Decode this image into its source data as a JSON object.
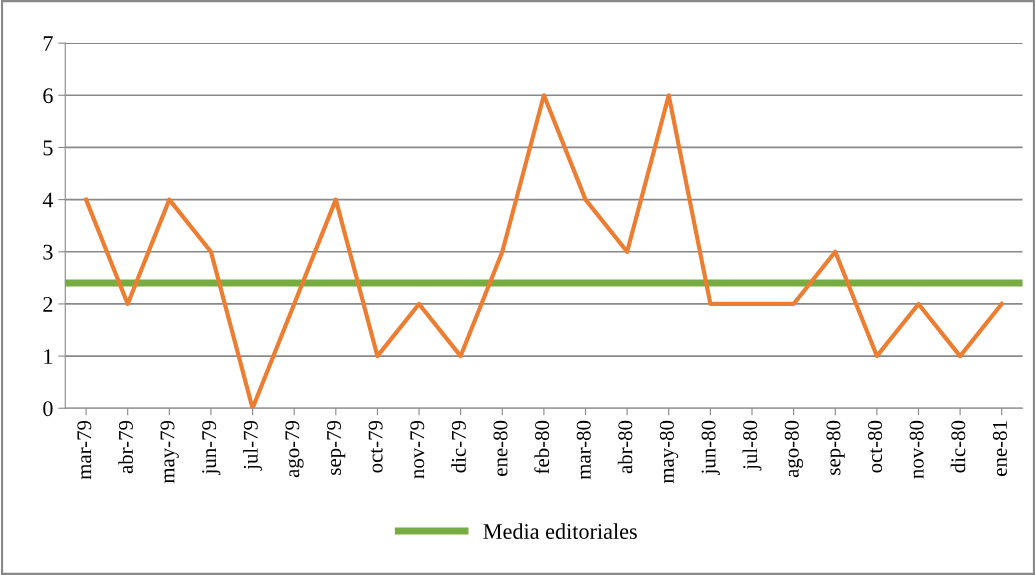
{
  "chart_data": {
    "type": "line",
    "categories": [
      "mar-79",
      "abr-79",
      "may-79",
      "jun-79",
      "jul-79",
      "ago-79",
      "sep-79",
      "oct-79",
      "nov-79",
      "dic-79",
      "ene-80",
      "feb-80",
      "mar-80",
      "abr-80",
      "may-80",
      "jun-80",
      "jul-80",
      "ago-80",
      "sep-80",
      "oct-80",
      "nov-80",
      "dic-80",
      "ene-81"
    ],
    "series": [
      {
        "color": "#ed7d31",
        "values": [
          4,
          2,
          4,
          3,
          0,
          2,
          4,
          1,
          2,
          1,
          3,
          6,
          4,
          3,
          6,
          2,
          2,
          2,
          3,
          1,
          2,
          1,
          2
        ]
      }
    ],
    "ref_lines": [
      {
        "axis": "y",
        "value": 2.4,
        "label": "Media editoriales",
        "color": "#77ac42"
      }
    ],
    "ylim": [
      0,
      7
    ],
    "yticks": [
      0,
      1,
      2,
      3,
      4,
      5,
      6,
      7
    ],
    "grid": "y",
    "legend": "bottom",
    "marker": "none",
    "line_style": "solid"
  }
}
